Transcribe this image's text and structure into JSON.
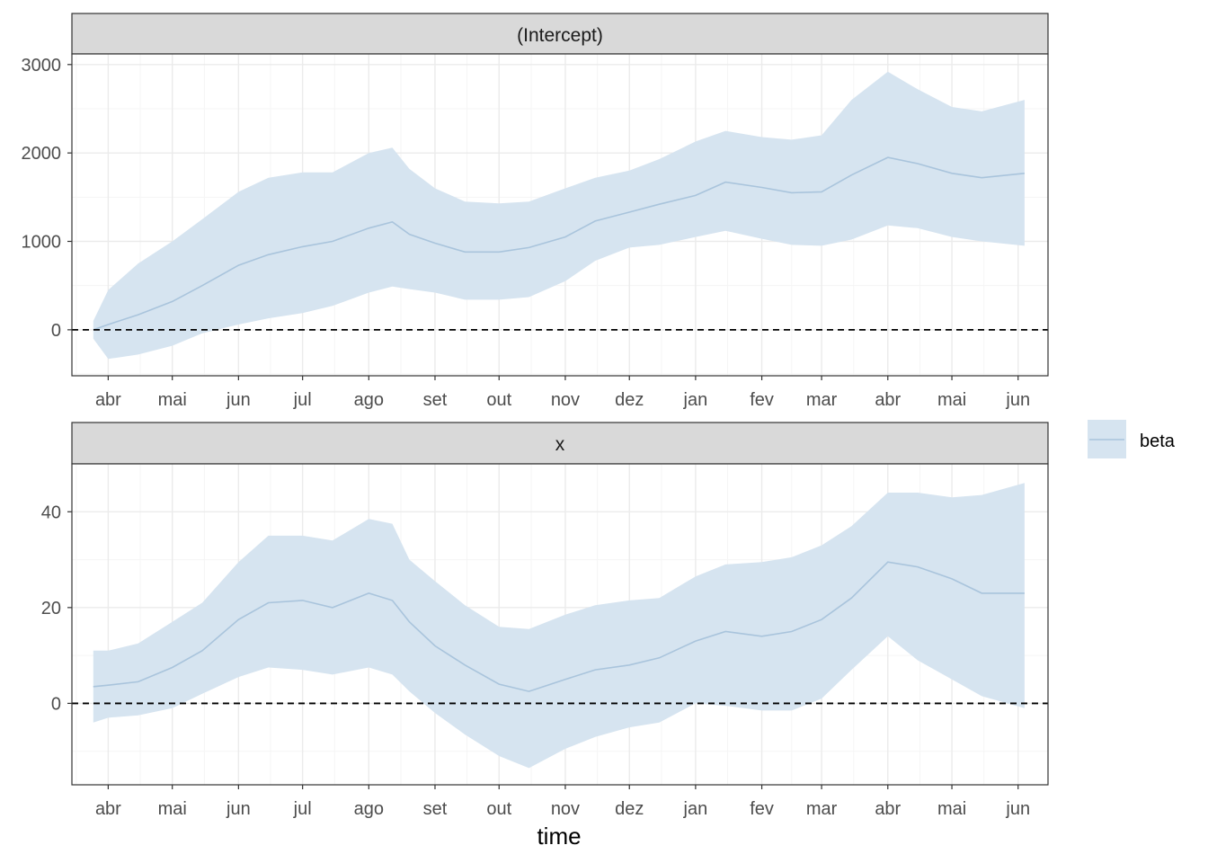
{
  "chart_data": [
    {
      "type": "area",
      "facet": "(Intercept)",
      "ylim": [
        -520,
        3120
      ],
      "yticks": [
        0,
        1000,
        2000,
        3000
      ],
      "yminor": [
        -500,
        500,
        1500,
        2500
      ],
      "reference_line": 0,
      "x": [
        "2021-03-25",
        "2021-04-01",
        "2021-04-15",
        "2021-05-01",
        "2021-05-15",
        "2021-06-01",
        "2021-06-15",
        "2021-07-01",
        "2021-07-15",
        "2021-08-01",
        "2021-08-12",
        "2021-08-20",
        "2021-09-01",
        "2021-09-15",
        "2021-10-01",
        "2021-10-15",
        "2021-11-01",
        "2021-11-15",
        "2021-12-01",
        "2021-12-15",
        "2022-01-01",
        "2022-01-15",
        "2022-02-01",
        "2022-02-15",
        "2022-03-01",
        "2022-03-15",
        "2022-04-01",
        "2022-04-15",
        "2022-05-01",
        "2022-05-15",
        "2022-06-04"
      ],
      "series": [
        {
          "name": "beta",
          "values": [
            0,
            60,
            170,
            320,
            500,
            730,
            850,
            940,
            1000,
            1150,
            1220,
            1080,
            980,
            880,
            880,
            930,
            1050,
            1230,
            1330,
            1420,
            1520,
            1670,
            1610,
            1550,
            1560,
            1750,
            1950,
            1880,
            1770,
            1720,
            1770
          ],
          "lower": [
            -100,
            -330,
            -280,
            -180,
            -40,
            60,
            130,
            190,
            270,
            420,
            490,
            460,
            420,
            340,
            340,
            370,
            550,
            780,
            930,
            960,
            1050,
            1120,
            1030,
            960,
            950,
            1020,
            1180,
            1150,
            1050,
            1000,
            950
          ],
          "upper": [
            100,
            450,
            750,
            1000,
            1250,
            1560,
            1720,
            1780,
            1780,
            2000,
            2060,
            1820,
            1600,
            1450,
            1430,
            1450,
            1600,
            1720,
            1800,
            1930,
            2130,
            2250,
            2180,
            2150,
            2200,
            2600,
            2920,
            2720,
            2520,
            2470,
            2600
          ]
        }
      ]
    },
    {
      "type": "area",
      "facet": "x",
      "ylim": [
        -17,
        50
      ],
      "yticks": [
        0,
        20,
        40
      ],
      "yminor": [
        -10,
        10,
        30
      ],
      "reference_line": 0,
      "x": [
        "2021-03-25",
        "2021-04-01",
        "2021-04-15",
        "2021-05-01",
        "2021-05-15",
        "2021-06-01",
        "2021-06-15",
        "2021-07-01",
        "2021-07-15",
        "2021-08-01",
        "2021-08-12",
        "2021-08-20",
        "2021-09-01",
        "2021-09-15",
        "2021-10-01",
        "2021-10-15",
        "2021-11-01",
        "2021-11-15",
        "2021-12-01",
        "2021-12-15",
        "2022-01-01",
        "2022-01-15",
        "2022-02-01",
        "2022-02-15",
        "2022-03-01",
        "2022-03-15",
        "2022-04-01",
        "2022-04-15",
        "2022-05-01",
        "2022-05-15",
        "2022-06-04"
      ],
      "series": [
        {
          "name": "beta",
          "values": [
            3.5,
            3.8,
            4.5,
            7.5,
            11,
            17.5,
            21,
            21.5,
            20,
            23,
            21.5,
            17,
            12,
            8,
            4,
            2.5,
            5,
            7,
            8,
            9.5,
            13,
            15,
            14,
            15,
            17.5,
            22,
            29.5,
            28.5,
            26,
            23,
            23
          ],
          "lower": [
            -4,
            -3,
            -2.5,
            -1,
            2,
            5.5,
            7.5,
            7,
            6,
            7.5,
            6,
            2.5,
            -2,
            -6.5,
            -11,
            -13.5,
            -9.5,
            -7,
            -5,
            -4,
            0,
            -0.5,
            -1.5,
            -1.5,
            1,
            7,
            14,
            9,
            5,
            1.5,
            -1
          ],
          "upper": [
            11,
            11,
            12.5,
            17,
            21,
            29.5,
            35,
            35,
            34,
            38.5,
            37.5,
            30,
            25.5,
            20.5,
            16,
            15.5,
            18.5,
            20.5,
            21.5,
            22,
            26.5,
            29,
            29.5,
            30.5,
            33,
            37,
            44,
            44,
            43,
            43.5,
            46
          ]
        }
      ]
    }
  ],
  "x_axis": {
    "title": "time",
    "ticks": [
      {
        "label": "abr",
        "date": "2021-04-01"
      },
      {
        "label": "mai",
        "date": "2021-05-01"
      },
      {
        "label": "jun",
        "date": "2021-06-01"
      },
      {
        "label": "jul",
        "date": "2021-07-01"
      },
      {
        "label": "ago",
        "date": "2021-08-01"
      },
      {
        "label": "set",
        "date": "2021-09-01"
      },
      {
        "label": "out",
        "date": "2021-10-01"
      },
      {
        "label": "nov",
        "date": "2021-11-01"
      },
      {
        "label": "dez",
        "date": "2021-12-01"
      },
      {
        "label": "jan",
        "date": "2022-01-01"
      },
      {
        "label": "fev",
        "date": "2022-02-01"
      },
      {
        "label": "mar",
        "date": "2022-03-01"
      },
      {
        "label": "abr",
        "date": "2022-04-01"
      },
      {
        "label": "mai",
        "date": "2022-05-01"
      },
      {
        "label": "jun",
        "date": "2022-06-01"
      }
    ],
    "range": [
      "2021-03-15",
      "2022-06-15"
    ]
  },
  "legend": {
    "position": "right",
    "label": "beta"
  },
  "colors": {
    "ribbon": "#d6e4f0",
    "line": "#a9c4dc",
    "strip_bg": "#d9d9d9",
    "grid_major": "#ebebeb",
    "grid_minor": "#f5f5f5",
    "reference": "#000000"
  },
  "grid": true
}
